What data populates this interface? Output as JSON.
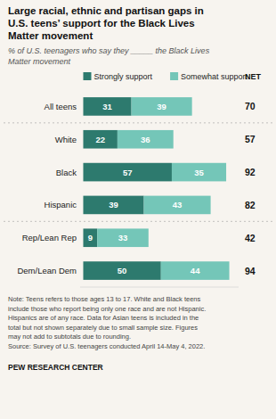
{
  "chart_data": {
    "type": "bar",
    "orientation": "horizontal",
    "stacked": true,
    "data_labels": true,
    "legend": "top",
    "grid": false,
    "tick_labels": "y",
    "title": "Large racial, ethnic and partisan gaps in\nU.S. teens’ support for the Black Lives\nMatter movement",
    "subtitle": "% of U.S. teenagers who say they _____ the Black Lives\nMatter movement",
    "categories": [
      "All teens",
      "White",
      "Black",
      "Hispanic",
      "Rep/Lean Rep",
      "Dem/Lean Dem"
    ],
    "series": [
      {
        "name": "Strongly support",
        "color": "#2d7a6e",
        "values": [
          31,
          22,
          57,
          39,
          9,
          50
        ]
      },
      {
        "name": "Somewhat support",
        "color": "#74c6b8",
        "values": [
          39,
          36,
          35,
          43,
          33,
          44
        ]
      }
    ],
    "net_label": "NET",
    "net": [
      70,
      57,
      92,
      82,
      42,
      94
    ],
    "xlim": [
      -2,
      100
    ],
    "note": "Note: Teens refers to those ages 13 to 17. White and Black teens\ninclude those who report being only one race and are not Hispanic.\nHispanics are of any race. Data for Asian teens is included in the\ntotal but not shown separately due to small sample size. Figures\nmay not add to subtotals due to rounding.\nSource: Survey of U.S. teenagers conducted April 14-May 4, 2022.",
    "org": "PEW RESEARCH CENTER"
  }
}
